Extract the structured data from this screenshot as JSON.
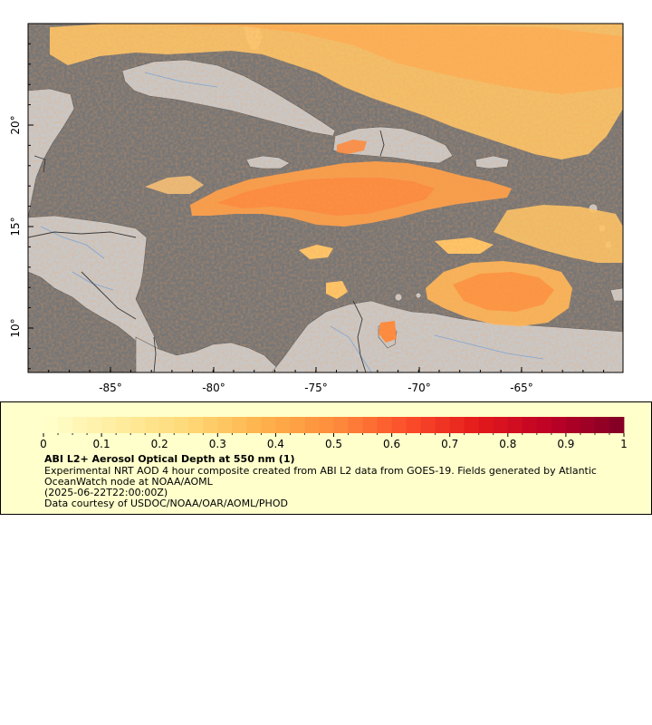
{
  "map": {
    "x_ticks": [
      "-85°",
      "-80°",
      "-75°",
      "-70°",
      "-65°"
    ],
    "y_ticks": [
      "20°",
      "15°",
      "10°"
    ],
    "colors": {
      "ocean": "#767676",
      "land": "#c8c8c8",
      "rivers": "#7ea6d4",
      "borders": "#4a4a4a"
    }
  },
  "legend": {
    "ticks": [
      "0",
      "0.1",
      "0.2",
      "0.3",
      "0.4",
      "0.5",
      "0.6",
      "0.7",
      "0.8",
      "0.9",
      "1"
    ],
    "range": [
      0,
      1
    ],
    "colormap": [
      "#ffffcc",
      "#ffeda0",
      "#fed976",
      "#feb24c",
      "#fd8d3c",
      "#fc4e2a",
      "#e31a1c",
      "#bd0026",
      "#800026"
    ],
    "title": "ABI L2+ Aerosol Optical Depth at 550 nm (1)",
    "description_line1": "Experimental NRT AOD 4 hour composite created from ABI L2 data from GOES-19. Fields generated by Atlantic",
    "description_line2": "OceanWatch node at NOAA/AOML",
    "timestamp": "(2025-06-22T22:00:00Z)",
    "credit": "Data courtesy of USDOC/NOAA/OAR/AOML/PHOD"
  }
}
